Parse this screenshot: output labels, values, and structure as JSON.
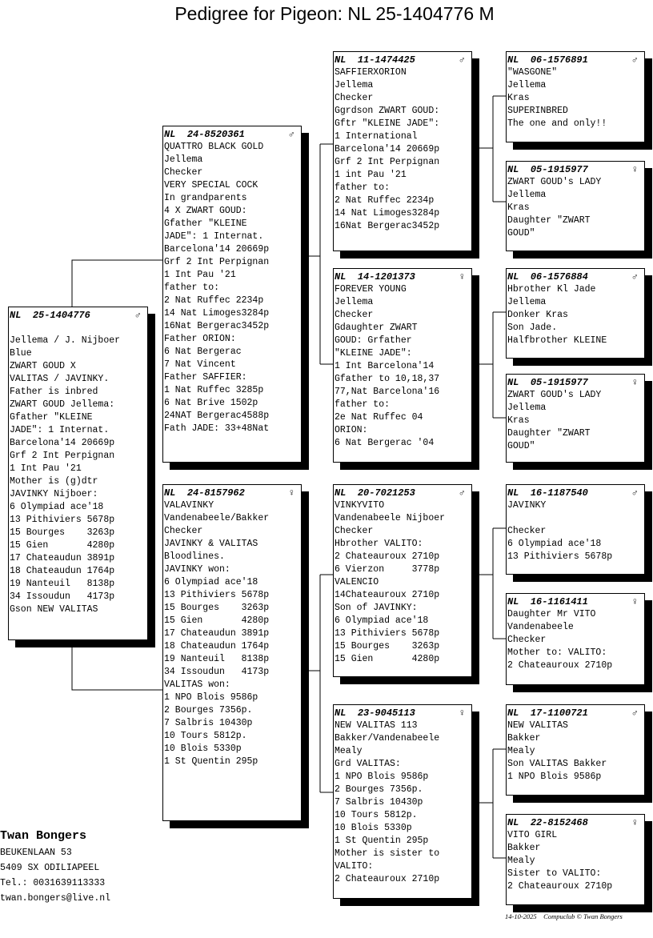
{
  "title": "Pedigree for Pigeon: NL  25-1404776 M",
  "pigeons": [
    {
      "id": "subject",
      "country": "NL",
      "ring": "25-1404776",
      "sex": "♂",
      "lines": [
        "",
        "Jellema / J. Nijboer",
        "Blue",
        "ZWART GOUD X",
        "VALITAS / JAVINKY.",
        "Father is inbred",
        "ZWART GOUD Jellema:",
        "Gfather \"KLEINE",
        "JADE\": 1 Internat.",
        "Barcelona'14 20669p",
        "Grf 2 Int Perpignan",
        "1 Int Pau '21",
        "Mother is (g)dtr",
        "JAVINKY Nijboer:",
        "6 Olympiad ace'18",
        "13 Pithiviers 5678p",
        "15 Bourges    3263p",
        "15 Gien       4280p",
        "17 Chateaudun 3891p",
        "18 Chateaudun 1764p",
        "19 Nanteuil   8138p",
        "34 Issoudun   4173p",
        "Gson NEW VALITAS"
      ]
    },
    {
      "id": "sire",
      "country": "NL",
      "ring": "24-8520361",
      "sex": "♂",
      "lines": [
        "QUATTRO BLACK GOLD",
        "Jellema",
        "Checker",
        "VERY SPECIAL COCK",
        "In grandparents",
        "4 X ZWART GOUD:",
        "Gfather \"KLEINE",
        "JADE\": 1 Internat.",
        "Barcelona'14 20669p",
        "Grf 2 Int Perpignan",
        "1 Int Pau '21",
        "father to:",
        "2 Nat Ruffec 2234p",
        "14 Nat Limoges3284p",
        "16Nat Bergerac3452p",
        "Father ORION:",
        "6 Nat Bergerac",
        "7 Nat Vincent",
        "Father SAFFIER:",
        "1 Nat Ruffec 3285p",
        "6 Nat Brive 1502p",
        "24NAT Bergerac4588p",
        "Fath JADE: 33+48Nat"
      ]
    },
    {
      "id": "dam",
      "country": "NL",
      "ring": "24-8157962",
      "sex": "♀",
      "lines": [
        "VALAVINKY",
        "Vandenabeele/Bakker",
        "Checker",
        "JAVINKY & VALITAS",
        "Bloodlines.",
        "JAVINKY won:",
        "6 Olympiad ace'18",
        "13 Pithiviers 5678p",
        "15 Bourges    3263p",
        "15 Gien       4280p",
        "17 Chateaudun 3891p",
        "18 Chateaudun 1764p",
        "19 Nanteuil   8138p",
        "34 Issoudun   4173p",
        "VALITAS won:",
        "1 NPO Blois 9586p",
        "2 Bourges 7356p.",
        "7 Salbris 10430p",
        "10 Tours 5812p.",
        "10 Blois 5330p",
        "1 St Quentin 295p"
      ]
    },
    {
      "id": "ss",
      "country": "NL",
      "ring": "11-1474425",
      "sex": "♂",
      "lines": [
        "SAFFIERXORION",
        "Jellema",
        "Checker",
        "Ggrdson ZWART GOUD:",
        "Gftr \"KLEINE JADE\":",
        "1 International",
        "Barcelona'14 20669p",
        "Grf 2 Int Perpignan",
        "1 int Pau '21",
        "father to:",
        "2 Nat Ruffec 2234p",
        "14 Nat Limoges3284p",
        "16Nat Bergerac3452p"
      ]
    },
    {
      "id": "sd",
      "country": "NL",
      "ring": "14-1201373",
      "sex": "♀",
      "lines": [
        "FOREVER YOUNG",
        "Jellema",
        "Checker",
        "Gdaughter ZWART",
        "GOUD: Grfather",
        "\"KLEINE JADE\":",
        "1 Int Barcelona'14",
        "Gfather to 10,18,37",
        "77,Nat Barcelona'16",
        "father to:",
        "2e Nat Ruffec 04",
        "ORION:",
        "6 Nat Bergerac '04"
      ]
    },
    {
      "id": "ds",
      "country": "NL",
      "ring": "20-7021253",
      "sex": "♂",
      "lines": [
        "VINKYVITO",
        "Vandenabeele Nijboer",
        "Checker",
        "Hbrother VALITO:",
        "2 Chateauroux 2710p",
        "6 Vierzon     3778p",
        "VALENCIO",
        "14Chateauroux 2710p",
        "Son of JAVINKY:",
        "6 Olympiad ace'18",
        "13 Pithiviers 5678p",
        "15 Bourges    3263p",
        "15 Gien       4280p"
      ]
    },
    {
      "id": "dd",
      "country": "NL",
      "ring": "23-9045113",
      "sex": "♀",
      "lines": [
        "NEW VALITAS 113",
        "Bakker/Vandenabeele",
        "Mealy",
        "Grd VALITAS:",
        "1 NPO Blois 9586p",
        "2 Bourges 7356p.",
        "7 Salbris 10430p",
        "10 Tours 5812p.",
        "10 Blois 5330p",
        "1 St Quentin 295p",
        "Mother is sister to",
        "VALITO:",
        "2 Chateauroux 2710p"
      ]
    },
    {
      "id": "sss",
      "country": "NL",
      "ring": "06-1576891",
      "sex": "♂",
      "lines": [
        "\"WASGONE\"",
        "Jellema",
        "Kras",
        "SUPERINBRED",
        "The one and only!!"
      ]
    },
    {
      "id": "ssd",
      "country": "NL",
      "ring": "05-1915977",
      "sex": "♀",
      "lines": [
        "ZWART GOUD's LADY",
        "Jellema",
        "Kras",
        "Daughter \"ZWART",
        "GOUD\""
      ]
    },
    {
      "id": "sds",
      "country": "NL",
      "ring": "06-1576884",
      "sex": "♂",
      "lines": [
        "Hbrother Kl Jade",
        "Jellema",
        "Donker Kras",
        "Son Jade.",
        "Halfbrother KLEINE"
      ]
    },
    {
      "id": "sdd",
      "country": "NL",
      "ring": "05-1915977",
      "sex": "♀",
      "lines": [
        "ZWART GOUD's LADY",
        "Jellema",
        "Kras",
        "Daughter \"ZWART",
        "GOUD\""
      ]
    },
    {
      "id": "dss",
      "country": "NL",
      "ring": "16-1187540",
      "sex": "♂",
      "lines": [
        "JAVINKY",
        "",
        "Checker",
        "6 Olympiad ace'18",
        "13 Pithiviers 5678p"
      ]
    },
    {
      "id": "dsd",
      "country": "NL",
      "ring": "16-1161411",
      "sex": "♀",
      "lines": [
        "Daughter Mr VITO",
        "Vandenabeele",
        "Checker",
        "Mother to: VALITO:",
        "2 Chateauroux 2710p"
      ]
    },
    {
      "id": "dds",
      "country": "NL",
      "ring": "17-1100721",
      "sex": "♂",
      "lines": [
        "NEW VALITAS",
        "Bakker",
        "Mealy",
        "Son VALITAS Bakker",
        "1 NPO Blois 9586p"
      ]
    },
    {
      "id": "ddd",
      "country": "NL",
      "ring": "22-8152468",
      "sex": "♀",
      "lines": [
        "VITO GIRL",
        "Bakker",
        "Mealy",
        "Sister to VALITO:",
        "2 Chateauroux 2710p"
      ]
    }
  ],
  "breeder": {
    "name": "Twan Bongers",
    "address": "BEUKENLAAN 53",
    "city": "5409 SX  ODILIAPEEL",
    "phone": "Tel.: 0031639113333",
    "email": "twan.bongers@live.nl"
  },
  "footer": {
    "date": "14-10-2025",
    "credit": "Compuclub © Twan Bongers"
  }
}
